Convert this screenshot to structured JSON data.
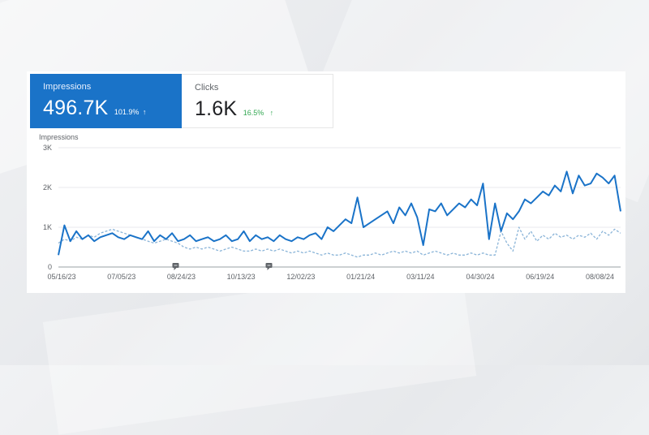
{
  "cards": {
    "impressions": {
      "label": "Impressions",
      "value": "496.7K",
      "change": "101.9%",
      "arrow": "↑"
    },
    "clicks": {
      "label": "Clicks",
      "value": "1.6K",
      "change": "16.5%",
      "arrow": "↑"
    }
  },
  "colors": {
    "impressions": "#1a73c8",
    "previous": "#8ab4d8",
    "clicks_change": "#34a853"
  },
  "chart_data": {
    "type": "line",
    "ylabel": "Impressions",
    "ylim": [
      0,
      3000
    ],
    "y_ticks": [
      "0",
      "1K",
      "2K",
      "3K"
    ],
    "y_tick_values": [
      0,
      1000,
      2000,
      3000
    ],
    "x_ticks": [
      "05/16/23",
      "07/05/23",
      "08/24/23",
      "10/13/23",
      "12/02/23",
      "01/21/24",
      "03/11/24",
      "04/30/24",
      "06/19/24",
      "08/08/24"
    ],
    "x_tick_positions": [
      0,
      50,
      100,
      150,
      200,
      250,
      300,
      350,
      400,
      450
    ],
    "x_range_days": [
      0,
      470
    ],
    "grid": true,
    "annotations": [
      {
        "icon": "comment-icon",
        "day": 98
      },
      {
        "icon": "comment-icon",
        "day": 176
      }
    ],
    "series": [
      {
        "style": "solid",
        "x": [
          0,
          5,
          10,
          15,
          20,
          25,
          30,
          35,
          40,
          45,
          50,
          55,
          60,
          65,
          70,
          75,
          80,
          85,
          90,
          95,
          100,
          105,
          110,
          115,
          120,
          125,
          130,
          135,
          140,
          145,
          150,
          155,
          160,
          165,
          170,
          175,
          180,
          185,
          190,
          195,
          200,
          205,
          210,
          215,
          220,
          225,
          230,
          235,
          240,
          245,
          250,
          255,
          260,
          265,
          270,
          275,
          280,
          285,
          290,
          295,
          300,
          305,
          310,
          315,
          320,
          325,
          330,
          335,
          340,
          345,
          350,
          355,
          360,
          365,
          370,
          375,
          380,
          385,
          390,
          395,
          400,
          405,
          410,
          415,
          420,
          425,
          430,
          435,
          440,
          445,
          450,
          455,
          460,
          465,
          470
        ],
        "y": [
          300,
          1050,
          650,
          900,
          700,
          800,
          650,
          750,
          800,
          850,
          750,
          700,
          800,
          750,
          700,
          900,
          650,
          800,
          700,
          850,
          650,
          700,
          800,
          650,
          700,
          750,
          650,
          700,
          800,
          650,
          700,
          900,
          650,
          800,
          700,
          750,
          650,
          800,
          700,
          650,
          750,
          700,
          800,
          850,
          700,
          1000,
          900,
          1050,
          1200,
          1100,
          1750,
          1000,
          1100,
          1200,
          1300,
          1400,
          1100,
          1500,
          1300,
          1600,
          1250,
          550,
          1450,
          1400,
          1600,
          1300,
          1450,
          1600,
          1500,
          1700,
          1550,
          2100,
          700,
          1600,
          900,
          1350,
          1200,
          1400,
          1700,
          1600,
          1750,
          1900,
          1800,
          2050,
          1900,
          2400,
          1850,
          2300,
          2050,
          2100,
          2350,
          2250,
          2100,
          2300,
          1400
        ]
      },
      {
        "style": "dashed",
        "x": [
          0,
          5,
          10,
          15,
          20,
          25,
          30,
          35,
          40,
          45,
          50,
          55,
          60,
          65,
          70,
          75,
          80,
          85,
          90,
          95,
          100,
          105,
          110,
          115,
          120,
          125,
          130,
          135,
          140,
          145,
          150,
          155,
          160,
          165,
          170,
          175,
          180,
          185,
          190,
          195,
          200,
          205,
          210,
          215,
          220,
          225,
          230,
          235,
          240,
          245,
          250,
          255,
          260,
          265,
          270,
          275,
          280,
          285,
          290,
          295,
          300,
          305,
          310,
          315,
          320,
          325,
          330,
          335,
          340,
          345,
          350,
          355,
          360,
          365,
          370,
          375,
          380,
          385,
          390,
          395,
          400,
          405,
          410,
          415,
          420,
          425,
          430,
          435,
          440,
          445,
          450,
          455,
          460,
          465,
          470
        ],
        "y": [
          600,
          700,
          650,
          750,
          700,
          800,
          750,
          850,
          900,
          950,
          900,
          850,
          800,
          750,
          700,
          650,
          600,
          650,
          700,
          650,
          600,
          500,
          450,
          500,
          450,
          500,
          450,
          400,
          450,
          500,
          450,
          400,
          400,
          450,
          400,
          450,
          400,
          450,
          400,
          350,
          400,
          350,
          400,
          350,
          300,
          350,
          300,
          300,
          350,
          300,
          250,
          300,
          300,
          350,
          300,
          350,
          400,
          350,
          400,
          350,
          400,
          300,
          350,
          400,
          350,
          300,
          350,
          300,
          300,
          350,
          300,
          350,
          300,
          300,
          900,
          600,
          400,
          1000,
          700,
          900,
          650,
          800,
          700,
          850,
          750,
          800,
          700,
          800,
          750,
          850,
          700,
          900,
          800,
          950,
          850
        ]
      }
    ]
  }
}
